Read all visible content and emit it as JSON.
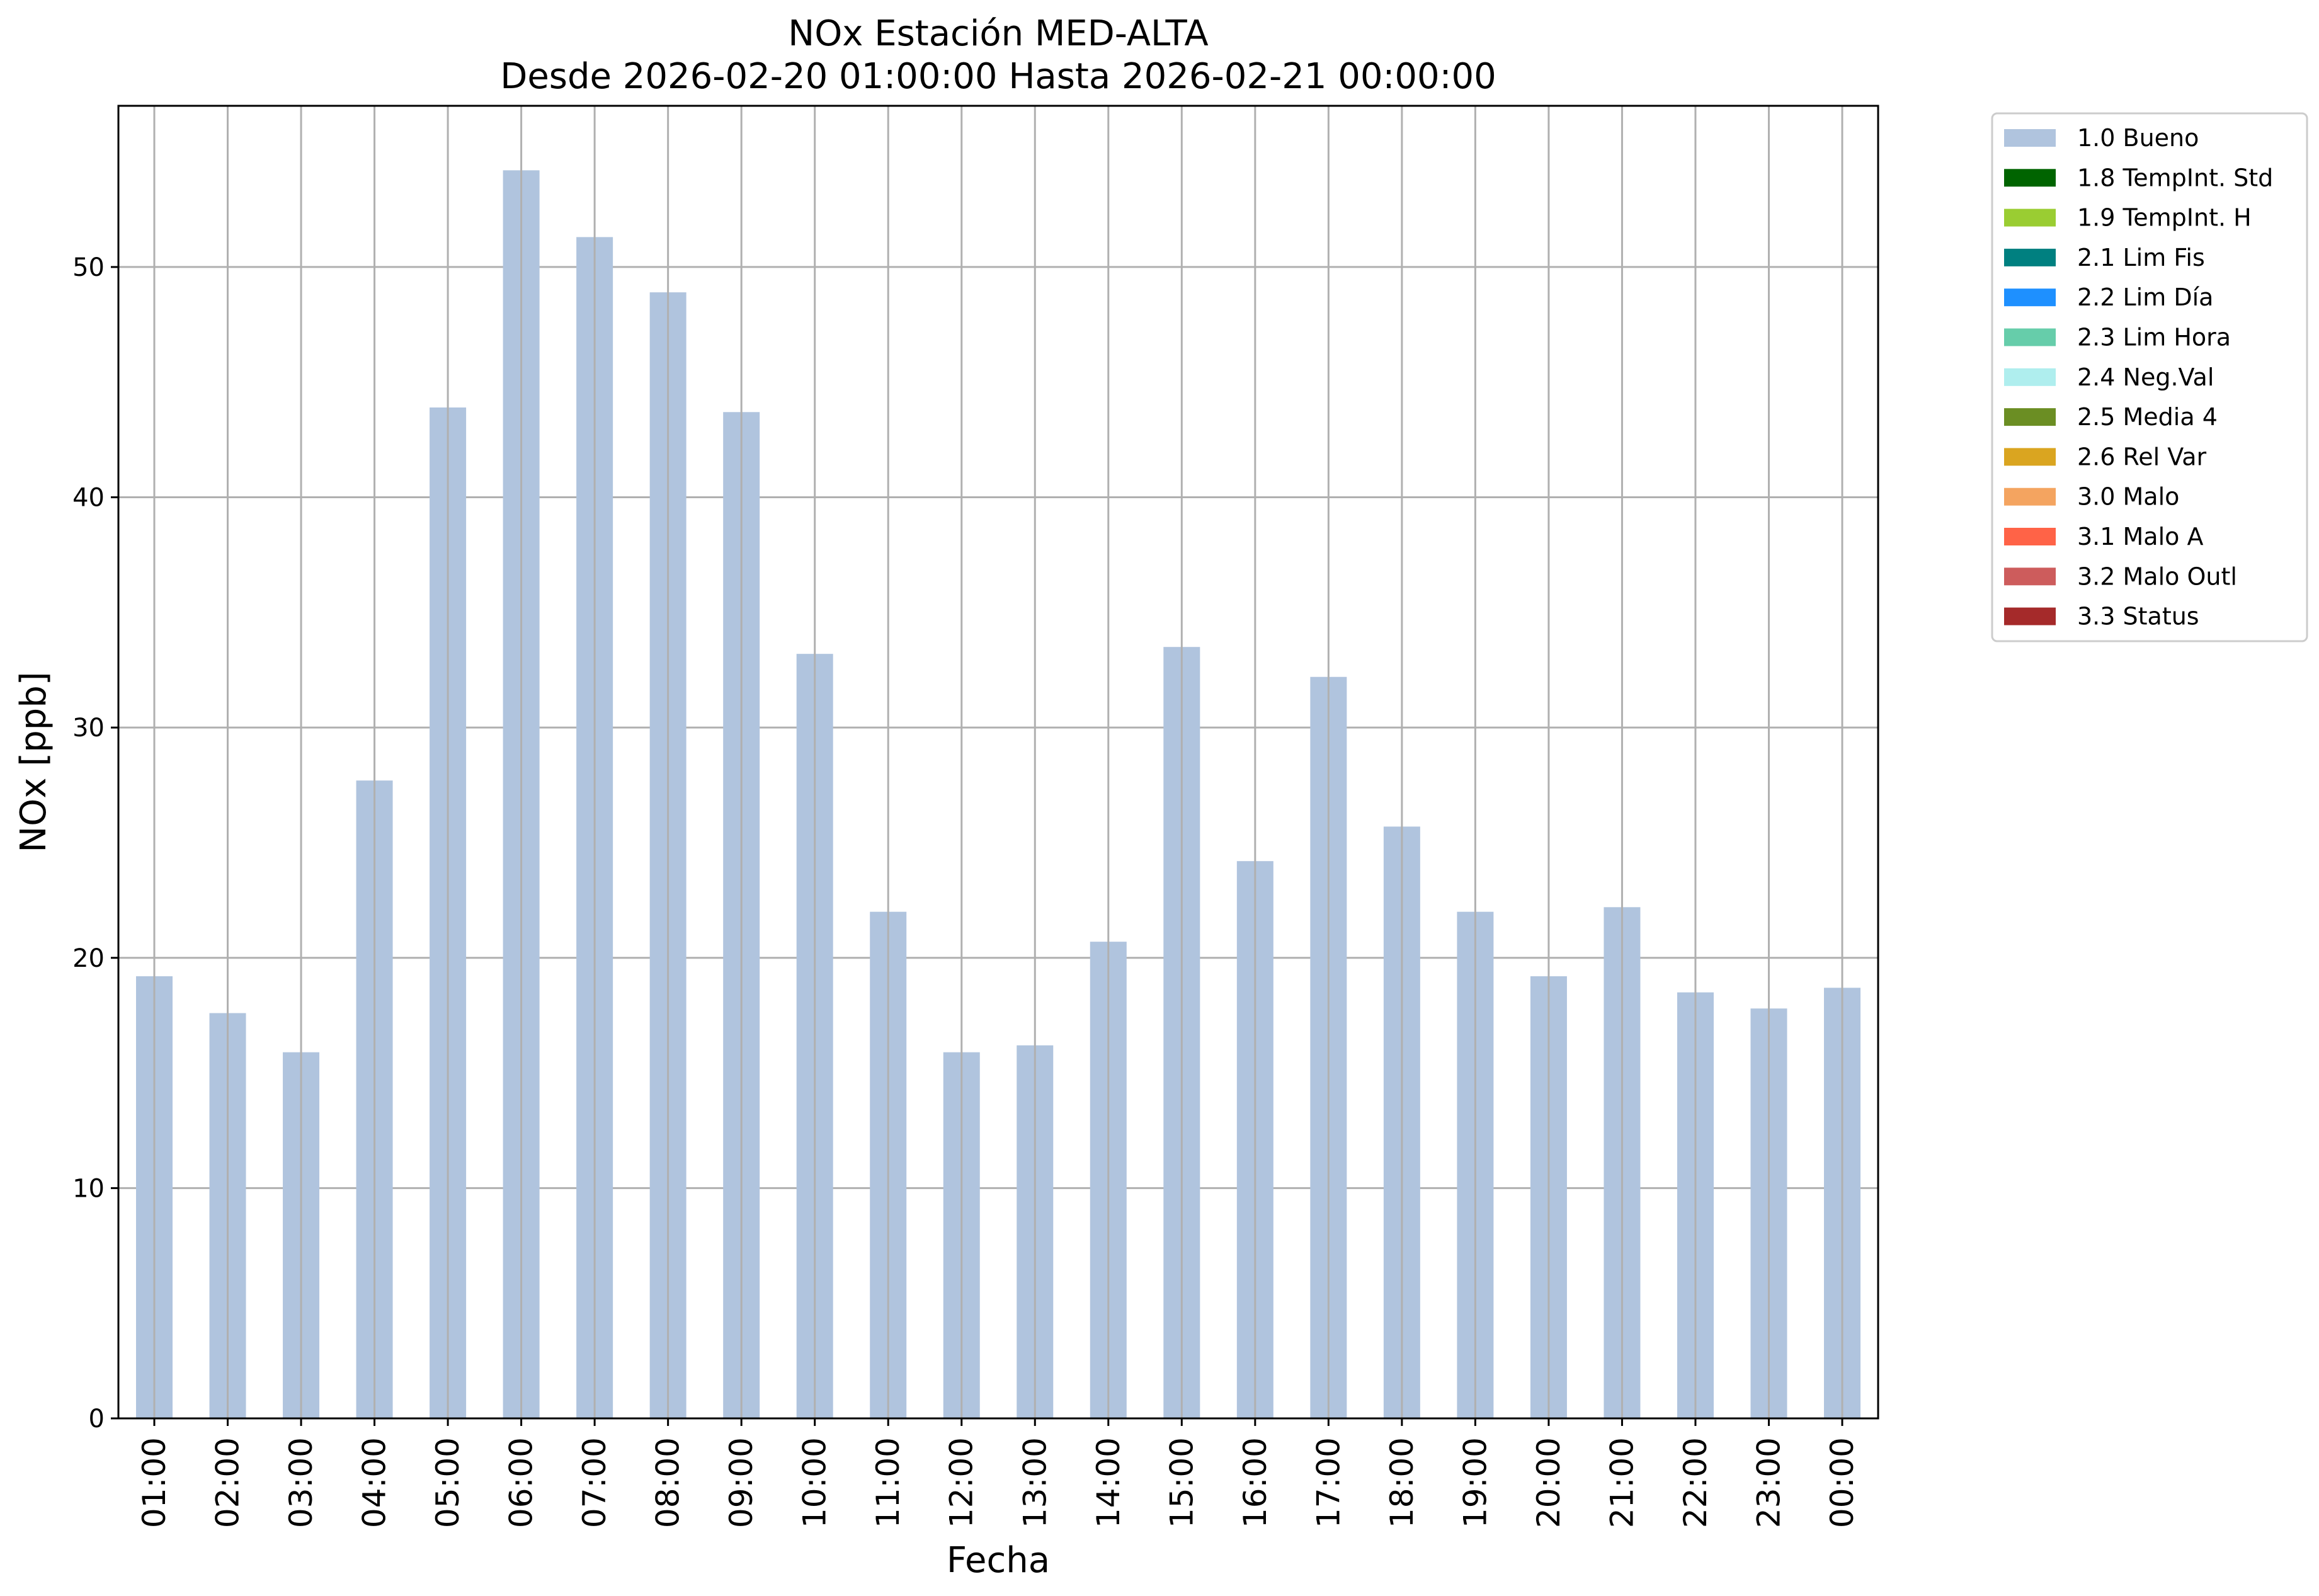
{
  "chart_data": {
    "type": "bar",
    "title": "NOx Estación MED-ALTA",
    "subtitle": "Desde 2026-02-20 01:00:00 Hasta 2026-02-21 00:00:00",
    "xlabel": "Fecha",
    "ylabel": "NOx [ppb]",
    "ylim": [
      0,
      57
    ],
    "yticks": [
      0,
      10,
      20,
      30,
      40,
      50
    ],
    "grid": true,
    "legend_position": "outside-top-right",
    "categories": [
      "01:00",
      "02:00",
      "03:00",
      "04:00",
      "05:00",
      "06:00",
      "07:00",
      "08:00",
      "09:00",
      "10:00",
      "11:00",
      "12:00",
      "13:00",
      "14:00",
      "15:00",
      "16:00",
      "17:00",
      "18:00",
      "19:00",
      "20:00",
      "21:00",
      "22:00",
      "23:00",
      "00:00"
    ],
    "series": [
      {
        "name": "1.0 Bueno",
        "color": "#b0c4de",
        "values": [
          19.2,
          17.6,
          15.9,
          27.7,
          43.9,
          54.2,
          51.3,
          48.9,
          43.7,
          33.2,
          22.0,
          15.9,
          16.2,
          20.7,
          33.5,
          24.2,
          32.2,
          25.7,
          22.0,
          19.2,
          22.2,
          18.5,
          17.8,
          18.7
        ]
      }
    ],
    "legend": [
      {
        "label": "1.0 Bueno",
        "color": "#b0c4de"
      },
      {
        "label": "1.8 TempInt. Std",
        "color": "#006400"
      },
      {
        "label": "1.9 TempInt. H",
        "color": "#9acd32"
      },
      {
        "label": "2.1 Lim Fis",
        "color": "#008080"
      },
      {
        "label": "2.2 Lim Día",
        "color": "#1e90ff"
      },
      {
        "label": "2.3 Lim Hora",
        "color": "#66cdaa"
      },
      {
        "label": "2.4 Neg.Val",
        "color": "#afeeee"
      },
      {
        "label": "2.5 Media 4",
        "color": "#6b8e23"
      },
      {
        "label": "2.6 Rel Var",
        "color": "#daa520"
      },
      {
        "label": "3.0 Malo",
        "color": "#f4a460"
      },
      {
        "label": "3.1 Malo A",
        "color": "#ff6347"
      },
      {
        "label": "3.2 Malo Outl",
        "color": "#cd5c5c"
      },
      {
        "label": "3.3 Status",
        "color": "#a52a2a"
      }
    ]
  }
}
